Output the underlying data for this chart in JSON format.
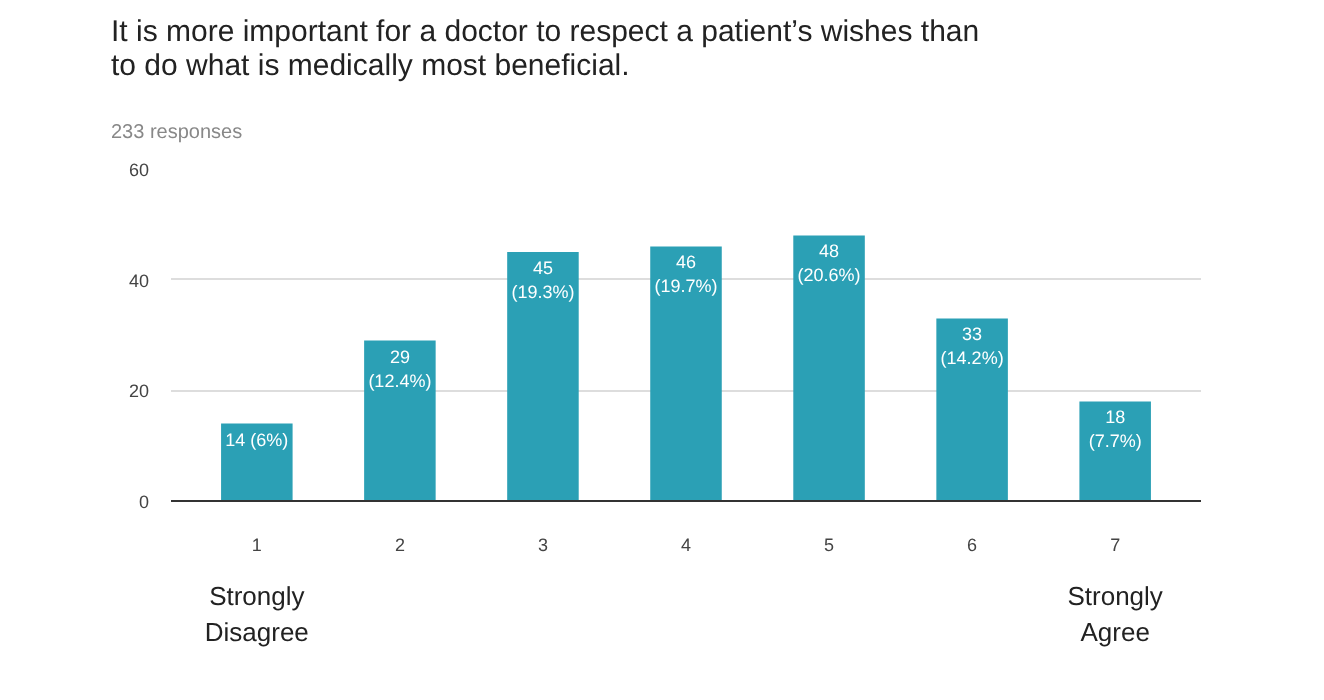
{
  "chart_data": {
    "type": "bar",
    "title": "It is more important for a doctor to respect a patient’s wishes than to do what is medically most beneficial.",
    "subtitle": "233 responses",
    "categories": [
      "1",
      "2",
      "3",
      "4",
      "5",
      "6",
      "7"
    ],
    "values": [
      14,
      29,
      45,
      46,
      48,
      33,
      18
    ],
    "value_labels": [
      "14 (6%)",
      "29\n(12.4%)",
      "45\n(19.3%)",
      "46\n(19.7%)",
      "48\n(20.6%)",
      "33\n(14.2%)",
      "18\n(7.7%)"
    ],
    "color": "#2ba0b5",
    "ylim": [
      0,
      60
    ],
    "yticks": [
      0,
      20,
      40,
      60
    ],
    "grid": "y",
    "annotations": [
      "Strongly Disagree",
      "Strongly Agree"
    ]
  }
}
